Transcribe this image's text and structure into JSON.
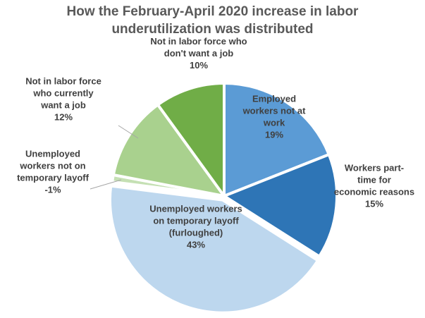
{
  "chart_data": {
    "type": "pie",
    "title_lines": [
      "How the February-April 2020 increase in labor",
      "underutilization was distributed"
    ],
    "slices": [
      {
        "label_lines": [
          "Employed",
          "workers not at",
          "work"
        ],
        "value_text": "19%",
        "value": 19,
        "color": "#5B9BD5"
      },
      {
        "label_lines": [
          "Workers part-",
          "time for",
          "economic reasons"
        ],
        "value_text": "15%",
        "value": 15,
        "color": "#2E75B6"
      },
      {
        "label_lines": [
          "Unemployed workers",
          "on temporary layoff",
          "(furloughed)"
        ],
        "value_text": "43%",
        "value": 43,
        "color": "#BDD7EE"
      },
      {
        "label_lines": [
          "Unemployed",
          "workers not on",
          "temporary layoff"
        ],
        "value_text": "-1%",
        "value": -1,
        "color": "#C5E0B4"
      },
      {
        "label_lines": [
          "Not in labor force",
          "who currently",
          "want a job"
        ],
        "value_text": "12%",
        "value": 12,
        "color": "#A9D18E"
      },
      {
        "label_lines": [
          "Not in labor force who",
          "don't want a job"
        ],
        "value_text": "10%",
        "value": 10,
        "color": "#70AD47"
      }
    ]
  }
}
